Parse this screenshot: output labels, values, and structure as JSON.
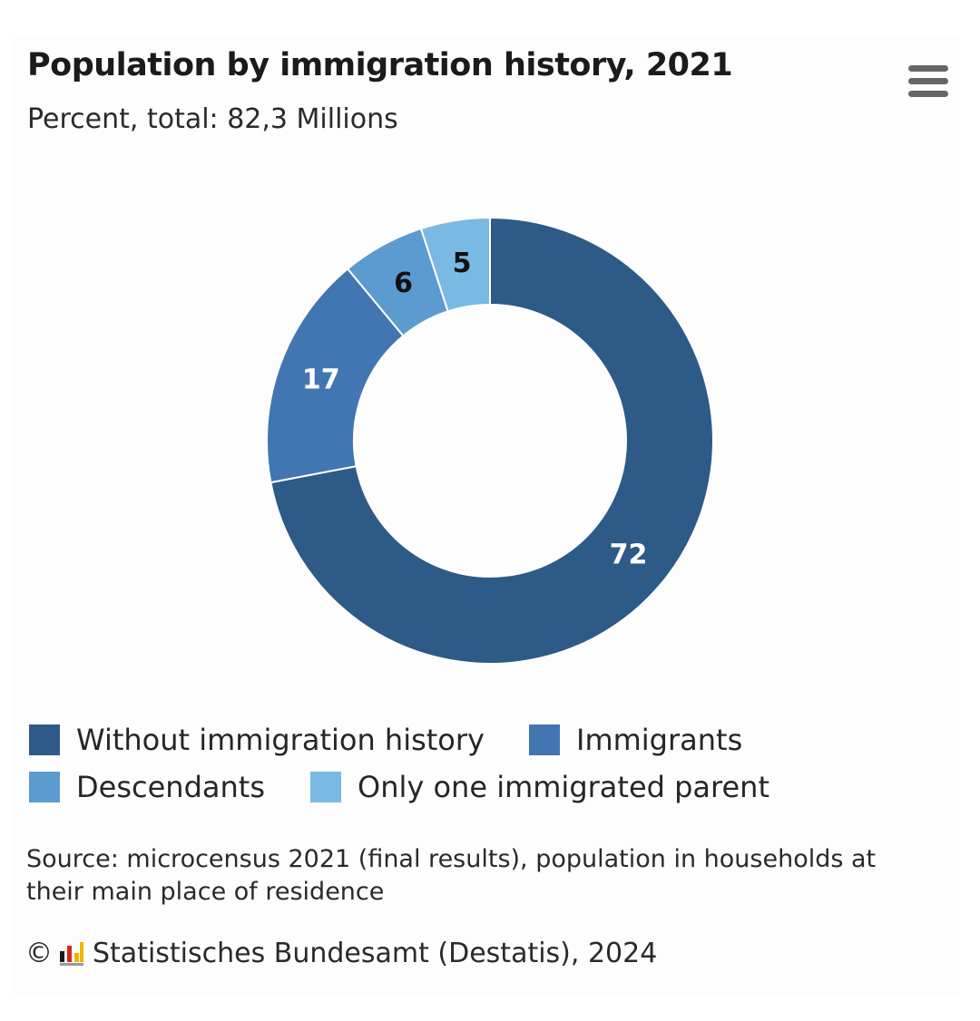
{
  "chart_data": {
    "type": "pie",
    "variant": "donut",
    "title": "Population by immigration history, 2021",
    "subtitle": "Percent, total: 82,3 Millions",
    "categories": [
      "Without immigration history",
      "Immigrants",
      "Descendants",
      "Only one immigrated parent"
    ],
    "values": [
      72,
      17,
      6,
      5
    ],
    "data_labels": [
      "72",
      "17",
      "6",
      "5"
    ],
    "legend_position": "bottom"
  },
  "colors": {
    "Without immigration history": "#2e5a87",
    "Immigrants": "#4276b2",
    "Descendants": "#5b9bcf",
    "Only one immigrated parent": "#79b9e3"
  },
  "icons": {
    "menu": "hamburger-menu-icon",
    "logo": "destatis-logo-icon"
  },
  "source": "Source: microcensus 2021 (final results), population in households at their main place of residence",
  "copyright": {
    "symbol": "©",
    "text": "Statistisches Bundesamt (Destatis), 2024"
  }
}
